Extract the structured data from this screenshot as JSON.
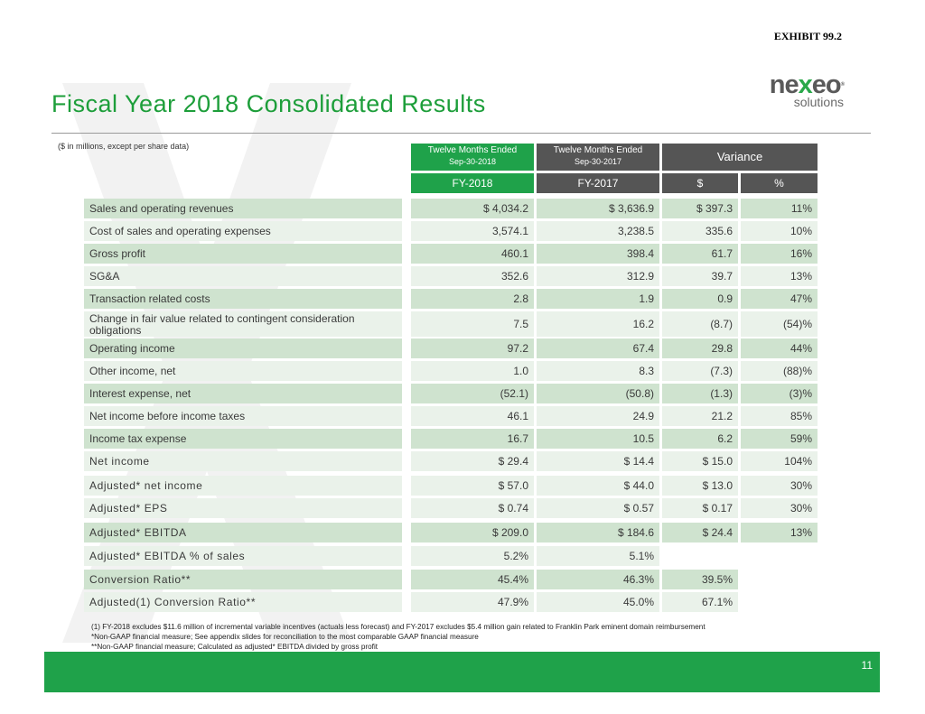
{
  "exhibit": "EXHIBIT 99.2",
  "title": "Fiscal Year 2018 Consolidated Results",
  "logo": {
    "brand_left": "ne",
    "brand_x": "x",
    "brand_right": "eo",
    "tm": "®",
    "sub": "solutions"
  },
  "units_note": "($ in millions, except per share data)",
  "headers": {
    "fy2018_line1": "Twelve Months Ended",
    "fy2018_line2": "Sep-30-2018",
    "fy2017_line1": "Twelve Months Ended",
    "fy2017_line2": "Sep-30-2017",
    "variance": "Variance",
    "col_fy2018": "FY-2018",
    "col_fy2017": "FY-2017",
    "col_dollar": "$",
    "col_pct": "%"
  },
  "rows": [
    {
      "label": "Sales and operating revenues",
      "fy2018": "$ 4,034.2",
      "fy2017": "$ 3,636.9",
      "var_dollar": "$ 397.3",
      "var_pct": "11%"
    },
    {
      "label": "Cost of sales and operating expenses",
      "fy2018": "3,574.1",
      "fy2017": "3,238.5",
      "var_dollar": "335.6",
      "var_pct": "10%"
    },
    {
      "label": "Gross profit",
      "fy2018": "460.1",
      "fy2017": "398.4",
      "var_dollar": "61.7",
      "var_pct": "16%"
    },
    {
      "label": "SG&A",
      "fy2018": "352.6",
      "fy2017": "312.9",
      "var_dollar": "39.7",
      "var_pct": "13%"
    },
    {
      "label": "Transaction related costs",
      "fy2018": "2.8",
      "fy2017": "1.9",
      "var_dollar": "0.9",
      "var_pct": "47%"
    },
    {
      "label": "Change in fair value related to contingent consideration obligations",
      "fy2018": "7.5",
      "fy2017": "16.2",
      "var_dollar": "(8.7)",
      "var_pct": "(54)%"
    },
    {
      "label": "Operating income",
      "fy2018": "97.2",
      "fy2017": "67.4",
      "var_dollar": "29.8",
      "var_pct": "44%"
    },
    {
      "label": "Other income, net",
      "fy2018": "1.0",
      "fy2017": "8.3",
      "var_dollar": "(7.3)",
      "var_pct": "(88)%"
    },
    {
      "label": "Interest expense, net",
      "fy2018": "(52.1)",
      "fy2017": "(50.8)",
      "var_dollar": "(1.3)",
      "var_pct": "(3)%"
    },
    {
      "label": "Net income before income taxes",
      "fy2018": "46.1",
      "fy2017": "24.9",
      "var_dollar": "21.2",
      "var_pct": "85%"
    },
    {
      "label": "Income tax expense",
      "fy2018": "16.7",
      "fy2017": "10.5",
      "var_dollar": "6.2",
      "var_pct": "59%"
    },
    {
      "label": "Net income",
      "fy2018": "$  29.4",
      "fy2017": "$  14.4",
      "var_dollar": "$  15.0",
      "var_pct": "104%"
    },
    {
      "label": "Adjusted* net income",
      "fy2018": "$  57.0",
      "fy2017": "$  44.0",
      "var_dollar": "$  13.0",
      "var_pct": "30%"
    },
    {
      "label": "Adjusted* EPS",
      "fy2018": "$  0.74",
      "fy2017": "$  0.57",
      "var_dollar": "$  0.17",
      "var_pct": "30%"
    },
    {
      "label": "Adjusted* EBITDA",
      "fy2018": "$ 209.0",
      "fy2017": "$ 184.6",
      "var_dollar": "$  24.4",
      "var_pct": "13%"
    },
    {
      "label": "Adjusted* EBITDA % of sales",
      "fy2018": "5.2%",
      "fy2017": "5.1%",
      "var_dollar": "",
      "var_pct": ""
    },
    {
      "label": "Conversion Ratio**",
      "fy2018": "45.4%",
      "fy2017": "46.3%",
      "var_dollar": "39.5%",
      "var_pct": ""
    },
    {
      "label": "Adjusted(1) Conversion Ratio**",
      "fy2018": "47.9%",
      "fy2017": "45.0%",
      "var_dollar": "67.1%",
      "var_pct": ""
    }
  ],
  "footnotes": [
    "(1) FY-2018 excludes $11.6 million of incremental variable incentives (actuals less forecast) and FY-2017 excludes $5.4 million gain related to Franklin Park eminent domain reimbursement",
    "*Non-GAAP financial measure; See appendix slides for reconciliation to the most comparable GAAP financial measure",
    "**Non-GAAP financial measure; Calculated as adjusted* EBITDA divided by gross profit"
  ],
  "page_number": "11",
  "colors": {
    "accent_green": "#1fa24a",
    "header_grey": "#555555",
    "row_dark": "#cfe3cf",
    "row_light": "#eaf2ea"
  }
}
